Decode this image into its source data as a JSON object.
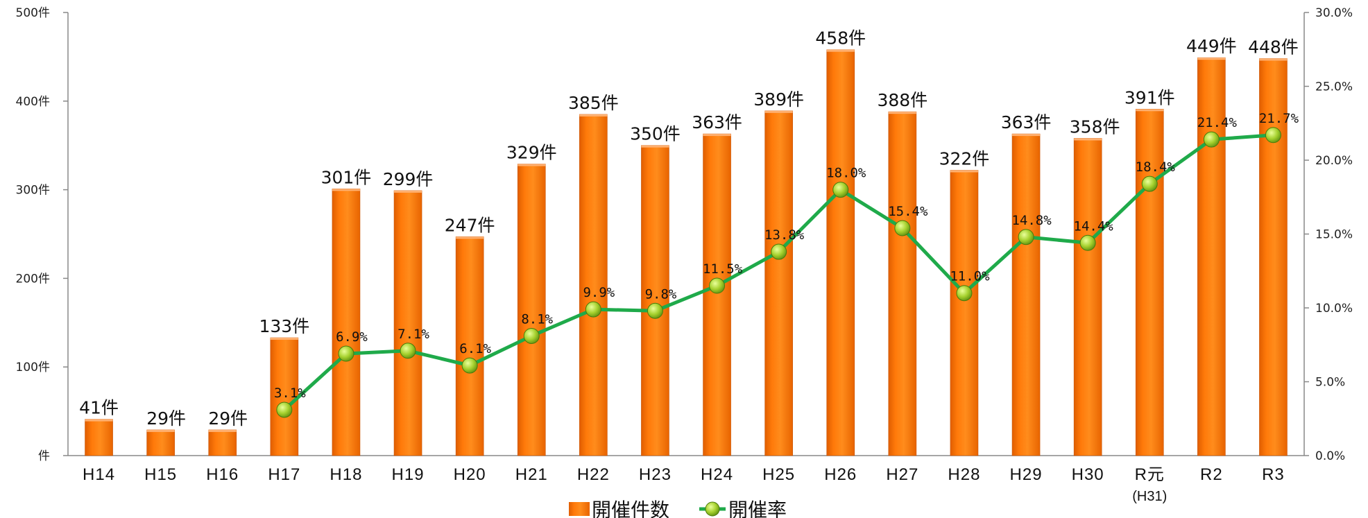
{
  "chart_data": {
    "type": "bar",
    "categories": [
      "H14",
      "H15",
      "H16",
      "H17",
      "H18",
      "H19",
      "H20",
      "H21",
      "H22",
      "H23",
      "H24",
      "H25",
      "H26",
      "H27",
      "H28",
      "H29",
      "H30",
      "R元",
      "R2",
      "R3"
    ],
    "category_sublabels": {
      "R元": "(H31)"
    },
    "series": [
      {
        "name": "開催件数",
        "type": "bar",
        "axis": "left",
        "color": "#ff7500",
        "values": [
          41,
          29,
          29,
          133,
          301,
          299,
          247,
          329,
          385,
          350,
          363,
          389,
          458,
          388,
          322,
          363,
          358,
          391,
          449,
          448
        ],
        "labels": [
          "41件",
          "29件",
          "29件",
          "133件",
          "301件",
          "299件",
          "247件",
          "329件",
          "385件",
          "350件",
          "363件",
          "389件",
          "458件",
          "388件",
          "322件",
          "363件",
          "358件",
          "391件",
          "449件",
          "448件"
        ]
      },
      {
        "name": "開催率",
        "type": "line",
        "axis": "right",
        "color": "#1faa4a",
        "marker_color": "#9acd32",
        "values": [
          null,
          null,
          null,
          3.1,
          6.9,
          7.1,
          6.1,
          8.1,
          9.9,
          9.8,
          11.5,
          13.8,
          18.0,
          15.4,
          11.0,
          14.8,
          14.4,
          18.4,
          21.4,
          21.7
        ],
        "labels": [
          null,
          null,
          null,
          "3.1%",
          "6.9%",
          "7.1%",
          "6.1%",
          "8.1%",
          "9.9%",
          "9.8%",
          "11.5%",
          "13.8%",
          "18.0%",
          "15.4%",
          "11.0%",
          "14.8%",
          "14.4%",
          "18.4%",
          "21.4%",
          "21.7%"
        ]
      }
    ],
    "left_axis": {
      "ylim": [
        0,
        500
      ],
      "tick_values": [
        0,
        100,
        200,
        300,
        400,
        500
      ],
      "tick_labels": [
        "件",
        "100件",
        "200件",
        "300件",
        "400件",
        "500件"
      ]
    },
    "right_axis": {
      "ylim": [
        0,
        30
      ],
      "tick_values": [
        0,
        5,
        10,
        15,
        20,
        25,
        30
      ],
      "tick_labels": [
        "0.0%",
        "5.0%",
        "10.0%",
        "15.0%",
        "20.0%",
        "25.0%",
        "30.0%"
      ]
    },
    "grid": false,
    "legend": {
      "position": "bottom",
      "items": [
        {
          "label": "開催件数",
          "kind": "bar",
          "color": "#ff7500"
        },
        {
          "label": "開催率",
          "kind": "line",
          "color": "#1faa4a"
        }
      ]
    }
  }
}
